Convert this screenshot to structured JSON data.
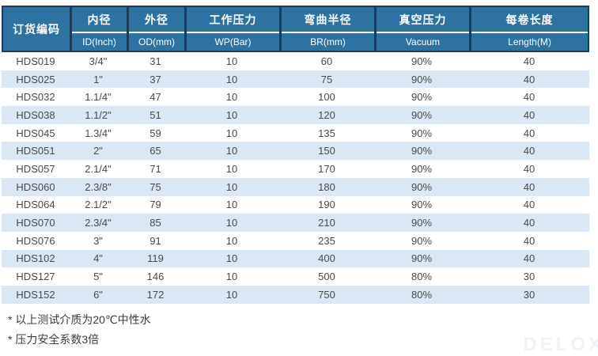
{
  "table": {
    "columns": [
      {
        "cn": "订货编码",
        "en": ""
      },
      {
        "cn": "内径",
        "en": "ID(Inch)"
      },
      {
        "cn": "外径",
        "en": "OD(mm)"
      },
      {
        "cn": "工作压力",
        "en": "WP(Bar)"
      },
      {
        "cn": "弯曲半径",
        "en": "BR(mm)"
      },
      {
        "cn": "真空压力",
        "en": "Vacuum"
      },
      {
        "cn": "每卷长度",
        "en": "Length(M)"
      }
    ],
    "rows": [
      [
        "HDS019",
        "3/4\"",
        "31",
        "10",
        "60",
        "90%",
        "40"
      ],
      [
        "HDS025",
        "1\"",
        "37",
        "10",
        "75",
        "90%",
        "40"
      ],
      [
        "HDS032",
        "1.1/4\"",
        "47",
        "10",
        "100",
        "90%",
        "40"
      ],
      [
        "HDS038",
        "1.1/2\"",
        "51",
        "10",
        "120",
        "90%",
        "40"
      ],
      [
        "HDS045",
        "1.3/4\"",
        "59",
        "10",
        "135",
        "90%",
        "40"
      ],
      [
        "HDS051",
        "2\"",
        "65",
        "10",
        "150",
        "90%",
        "40"
      ],
      [
        "HDS057",
        "2.1/4\"",
        "71",
        "10",
        "170",
        "90%",
        "40"
      ],
      [
        "HDS060",
        "2.3/8\"",
        "75",
        "10",
        "180",
        "90%",
        "40"
      ],
      [
        "HDS064",
        "2.1/2\"",
        "79",
        "10",
        "190",
        "90%",
        "40"
      ],
      [
        "HDS070",
        "2.3/4\"",
        "85",
        "10",
        "210",
        "90%",
        "40"
      ],
      [
        "HDS076",
        "3\"",
        "91",
        "10",
        "235",
        "90%",
        "40"
      ],
      [
        "HDS102",
        "4\"",
        "119",
        "10",
        "400",
        "90%",
        "40"
      ],
      [
        "HDS127",
        "5\"",
        "146",
        "10",
        "500",
        "80%",
        "30"
      ],
      [
        "HDS152",
        "6\"",
        "172",
        "10",
        "750",
        "80%",
        "30"
      ]
    ]
  },
  "footnotes": {
    "note1": "* 以上测试介质为20℃中性水",
    "note2": "* 压力安全系数3倍"
  },
  "watermark": "DELOX",
  "colors": {
    "header_blue": "#2e72a2",
    "frame_navy": "#1d3b5c",
    "header_separator_white": "#ffffff",
    "row_stripe_blue": "#d9e8f4",
    "data_text": "#4a4a4a",
    "watermark_gray": "#eef3f7"
  }
}
